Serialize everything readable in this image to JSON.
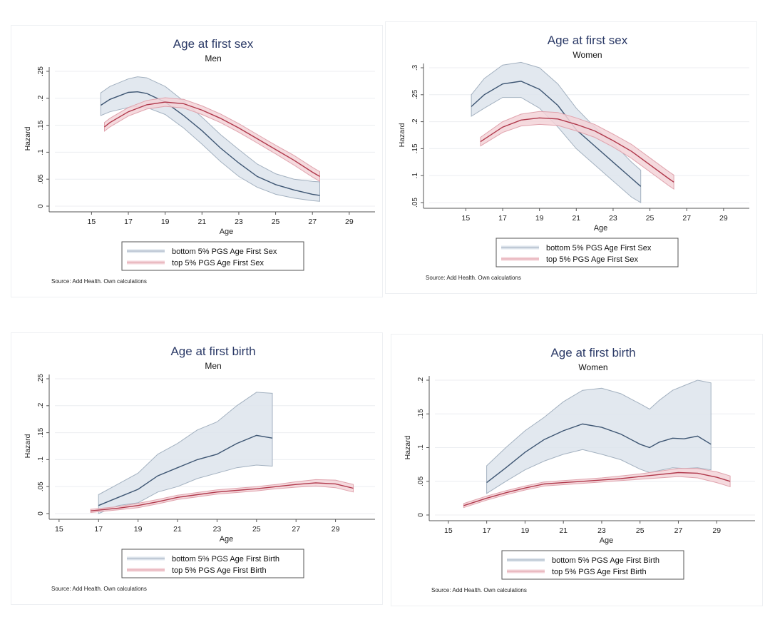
{
  "colors": {
    "bottom_line": "#3e5673",
    "bottom_band": "#dde4ec",
    "bottom_edge": "#a3b1c0",
    "top_line": "#b0384b",
    "top_band": "#f3d3d8",
    "top_edge": "#e0a3ad",
    "title": "#2b3a67"
  },
  "chart_data": [
    {
      "type": "line",
      "title": "Age at first sex",
      "subtitle": "Men",
      "xlabel": "Age",
      "ylabel": "Hazard",
      "xticks": [
        15,
        17,
        19,
        21,
        23,
        25,
        27,
        29
      ],
      "yticks": [
        0,
        0.05,
        0.1,
        0.15,
        0.2,
        0.25
      ],
      "ytick_labels": [
        "0",
        ".05",
        ".1",
        ".15",
        ".2",
        ".25"
      ],
      "xlim": [
        12.7,
        30.4
      ],
      "ylim": [
        0,
        0.25
      ],
      "grid": true,
      "legend_position": "bottom",
      "source": "Source: Add Health.  Own calculations",
      "series": [
        {
          "name": "bottom 5% PGS Age First Sex",
          "key": "bottom",
          "x": [
            15.5,
            16,
            17,
            17.5,
            18,
            19,
            20,
            21,
            22,
            23,
            24,
            25,
            26,
            27,
            27.4
          ],
          "mean": [
            0.187,
            0.198,
            0.211,
            0.212,
            0.209,
            0.193,
            0.168,
            0.14,
            0.108,
            0.08,
            0.055,
            0.04,
            0.03,
            0.022,
            0.02
          ],
          "lo": [
            0.168,
            0.175,
            0.183,
            0.185,
            0.183,
            0.17,
            0.145,
            0.115,
            0.083,
            0.055,
            0.035,
            0.022,
            0.015,
            0.01,
            0.009
          ],
          "hi": [
            0.21,
            0.222,
            0.236,
            0.24,
            0.238,
            0.222,
            0.195,
            0.165,
            0.133,
            0.105,
            0.078,
            0.06,
            0.05,
            0.046,
            0.045
          ]
        },
        {
          "name": "top 5% PGS Age First Sex",
          "key": "top",
          "x": [
            15.7,
            16,
            17,
            18,
            19,
            20,
            21,
            22,
            23,
            24,
            25,
            26,
            27,
            27.4
          ],
          "mean": [
            0.147,
            0.155,
            0.175,
            0.188,
            0.193,
            0.19,
            0.178,
            0.163,
            0.145,
            0.125,
            0.105,
            0.085,
            0.063,
            0.055
          ],
          "lo": [
            0.139,
            0.147,
            0.167,
            0.18,
            0.185,
            0.182,
            0.17,
            0.155,
            0.137,
            0.117,
            0.097,
            0.076,
            0.054,
            0.046
          ],
          "hi": [
            0.155,
            0.163,
            0.183,
            0.196,
            0.201,
            0.198,
            0.186,
            0.171,
            0.153,
            0.133,
            0.113,
            0.094,
            0.072,
            0.064
          ]
        }
      ]
    },
    {
      "type": "line",
      "title": "Age at first sex",
      "subtitle": "Women",
      "xlabel": "Age",
      "ylabel": "Hazard",
      "xticks": [
        15,
        17,
        19,
        21,
        23,
        25,
        27,
        29
      ],
      "yticks": [
        0.05,
        0.1,
        0.15,
        0.2,
        0.25,
        0.3
      ],
      "ytick_labels": [
        ".05",
        ".1",
        ".15",
        ".2",
        ".25",
        ".3"
      ],
      "xlim": [
        12.7,
        30.4
      ],
      "ylim": [
        0.05,
        0.3
      ],
      "grid": true,
      "legend_position": "bottom",
      "source": "Source: Add Health.  Own calculations",
      "series": [
        {
          "name": "bottom 5% PGS Age First Sex",
          "key": "bottom",
          "x": [
            15.3,
            16,
            17,
            18,
            19,
            20,
            21,
            22,
            23,
            24,
            24.5
          ],
          "mean": [
            0.228,
            0.25,
            0.27,
            0.275,
            0.26,
            0.23,
            0.185,
            0.155,
            0.125,
            0.095,
            0.08
          ],
          "lo": [
            0.21,
            0.225,
            0.245,
            0.245,
            0.225,
            0.19,
            0.15,
            0.12,
            0.09,
            0.06,
            0.05
          ],
          "hi": [
            0.25,
            0.28,
            0.305,
            0.31,
            0.3,
            0.27,
            0.225,
            0.19,
            0.16,
            0.125,
            0.11
          ]
        },
        {
          "name": "top 5% PGS Age First Sex",
          "key": "top",
          "x": [
            15.8,
            17,
            18,
            19,
            20,
            21,
            22,
            23,
            24,
            25,
            26,
            26.3
          ],
          "mean": [
            0.163,
            0.19,
            0.203,
            0.207,
            0.205,
            0.195,
            0.183,
            0.165,
            0.145,
            0.12,
            0.095,
            0.088
          ],
          "lo": [
            0.155,
            0.18,
            0.192,
            0.195,
            0.193,
            0.183,
            0.171,
            0.153,
            0.132,
            0.107,
            0.082,
            0.075
          ],
          "hi": [
            0.171,
            0.2,
            0.214,
            0.219,
            0.217,
            0.207,
            0.195,
            0.177,
            0.158,
            0.133,
            0.108,
            0.101
          ]
        }
      ]
    },
    {
      "type": "line",
      "title": "Age at first birth",
      "subtitle": "Men",
      "xlabel": "Age",
      "ylabel": "Hazard",
      "xticks": [
        15,
        17,
        19,
        21,
        23,
        25,
        27,
        29
      ],
      "yticks": [
        0,
        0.05,
        0.1,
        0.15,
        0.2,
        0.25
      ],
      "ytick_labels": [
        "0",
        ".05",
        ".1",
        ".15",
        ".2",
        ".25"
      ],
      "xlim": [
        14.5,
        31
      ],
      "ylim": [
        0,
        0.25
      ],
      "grid": true,
      "legend_position": "bottom",
      "source": "Source: Add Health.  Own calculations",
      "series": [
        {
          "name": "bottom 5% PGS Age First Birth",
          "key": "bottom",
          "x": [
            17,
            18,
            19,
            20,
            21,
            22,
            23,
            24,
            25,
            25.8
          ],
          "mean": [
            0.015,
            0.03,
            0.045,
            0.07,
            0.085,
            0.1,
            0.11,
            0.13,
            0.145,
            0.14
          ],
          "lo": [
            0,
            0.015,
            0.02,
            0.04,
            0.05,
            0.065,
            0.075,
            0.085,
            0.09,
            0.088
          ],
          "hi": [
            0.035,
            0.055,
            0.075,
            0.11,
            0.13,
            0.155,
            0.17,
            0.2,
            0.225,
            0.223
          ]
        },
        {
          "name": "top 5% PGS Age First Birth",
          "key": "top",
          "x": [
            16.6,
            18,
            19,
            20,
            21,
            22,
            23,
            24,
            25,
            26,
            27,
            28,
            29,
            29.9
          ],
          "mean": [
            0.005,
            0.01,
            0.015,
            0.022,
            0.03,
            0.035,
            0.04,
            0.043,
            0.046,
            0.05,
            0.054,
            0.057,
            0.055,
            0.047
          ],
          "lo": [
            0.002,
            0.007,
            0.011,
            0.018,
            0.026,
            0.031,
            0.036,
            0.039,
            0.042,
            0.046,
            0.049,
            0.051,
            0.048,
            0.04
          ],
          "hi": [
            0.008,
            0.013,
            0.019,
            0.026,
            0.034,
            0.039,
            0.044,
            0.047,
            0.05,
            0.054,
            0.059,
            0.063,
            0.062,
            0.054
          ]
        }
      ]
    },
    {
      "type": "line",
      "title": "Age at first birth",
      "subtitle": "Women",
      "xlabel": "Age",
      "ylabel": "Hazard",
      "xticks": [
        15,
        17,
        19,
        21,
        23,
        25,
        27,
        29
      ],
      "yticks": [
        0,
        0.05,
        0.1,
        0.15,
        0.2
      ],
      "ytick_labels": [
        "0",
        ".05",
        ".1",
        ".15",
        ".2"
      ],
      "xlim": [
        14,
        31
      ],
      "ylim": [
        0,
        0.2
      ],
      "grid": true,
      "legend_position": "bottom",
      "source": "Source: Add Health.  Own calculations",
      "series": [
        {
          "name": "bottom 5% PGS Age First Birth",
          "key": "bottom",
          "x": [
            17,
            18,
            19,
            20,
            21,
            22,
            23,
            24,
            25,
            25.5,
            26,
            26.7,
            27.3,
            28,
            28.7
          ],
          "mean": [
            0.048,
            0.07,
            0.093,
            0.112,
            0.125,
            0.135,
            0.13,
            0.12,
            0.105,
            0.1,
            0.108,
            0.114,
            0.113,
            0.117,
            0.105
          ],
          "lo": [
            0.032,
            0.05,
            0.067,
            0.08,
            0.09,
            0.097,
            0.09,
            0.082,
            0.068,
            0.063,
            0.066,
            0.07,
            0.069,
            0.07,
            0.067
          ],
          "hi": [
            0.073,
            0.1,
            0.125,
            0.145,
            0.168,
            0.185,
            0.188,
            0.18,
            0.165,
            0.157,
            0.17,
            0.185,
            0.192,
            0.2,
            0.196
          ]
        },
        {
          "name": "top 5% PGS Age First Birth",
          "key": "top",
          "x": [
            15.8,
            17,
            18,
            19,
            20,
            21,
            22,
            23,
            24,
            25,
            26,
            27,
            28,
            29,
            29.7
          ],
          "mean": [
            0.014,
            0.025,
            0.033,
            0.04,
            0.046,
            0.048,
            0.05,
            0.052,
            0.054,
            0.057,
            0.06,
            0.063,
            0.062,
            0.056,
            0.05
          ],
          "lo": [
            0.011,
            0.022,
            0.03,
            0.037,
            0.043,
            0.045,
            0.047,
            0.049,
            0.051,
            0.053,
            0.055,
            0.057,
            0.055,
            0.048,
            0.042
          ],
          "hi": [
            0.017,
            0.028,
            0.036,
            0.043,
            0.049,
            0.051,
            0.053,
            0.055,
            0.058,
            0.061,
            0.065,
            0.069,
            0.069,
            0.064,
            0.058
          ]
        }
      ]
    }
  ]
}
